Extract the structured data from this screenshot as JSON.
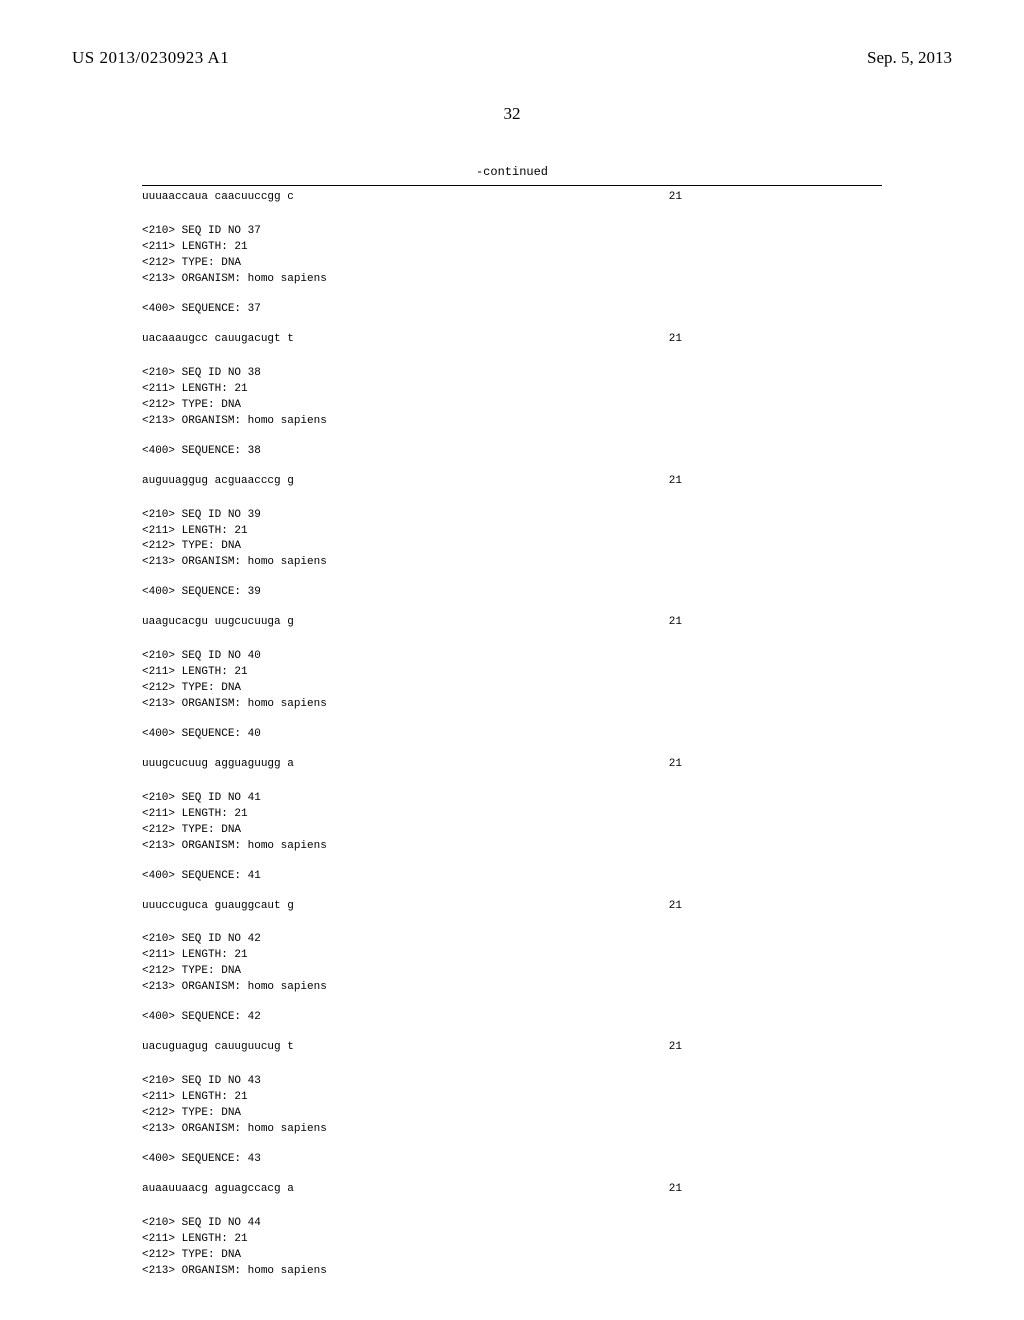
{
  "header": {
    "publication_number": "US 2013/0230923 A1",
    "publication_date": "Sep. 5, 2013"
  },
  "page_number": "32",
  "continued_label": "-continued",
  "entries": [
    {
      "prev_sequence": "uuuaaccaua caacuuccgg c",
      "prev_length": "21",
      "seq_id": "37",
      "length": "21",
      "type": "DNA",
      "organism": "homo sapiens",
      "sequence_no": "37",
      "sequence": "uacaaaugcc cauugacugt t",
      "seq_length": "21"
    },
    {
      "seq_id": "38",
      "length": "21",
      "type": "DNA",
      "organism": "homo sapiens",
      "sequence_no": "38",
      "sequence": "auguuaggug acguaacccg g",
      "seq_length": "21"
    },
    {
      "seq_id": "39",
      "length": "21",
      "type": "DNA",
      "organism": "homo sapiens",
      "sequence_no": "39",
      "sequence": "uaagucacgu uugcucuuga g",
      "seq_length": "21"
    },
    {
      "seq_id": "40",
      "length": "21",
      "type": "DNA",
      "organism": "homo sapiens",
      "sequence_no": "40",
      "sequence": "uuugcucuug agguaguugg a",
      "seq_length": "21"
    },
    {
      "seq_id": "41",
      "length": "21",
      "type": "DNA",
      "organism": "homo sapiens",
      "sequence_no": "41",
      "sequence": "uuuccuguca guauggcaut g",
      "seq_length": "21"
    },
    {
      "seq_id": "42",
      "length": "21",
      "type": "DNA",
      "organism": "homo sapiens",
      "sequence_no": "42",
      "sequence": "uacuguagug cauuguucug t",
      "seq_length": "21"
    },
    {
      "seq_id": "43",
      "length": "21",
      "type": "DNA",
      "organism": "homo sapiens",
      "sequence_no": "43",
      "sequence": "auaauuaacg aguagccacg a",
      "seq_length": "21"
    },
    {
      "seq_id": "44",
      "length": "21",
      "type": "DNA",
      "organism": "homo sapiens"
    }
  ],
  "labels": {
    "seq_id_prefix": "<210> SEQ ID NO ",
    "length_prefix": "<211> LENGTH: ",
    "type_prefix": "<212> TYPE: ",
    "organism_prefix": "<213> ORGANISM: ",
    "sequence_prefix": "<400> SEQUENCE: "
  }
}
